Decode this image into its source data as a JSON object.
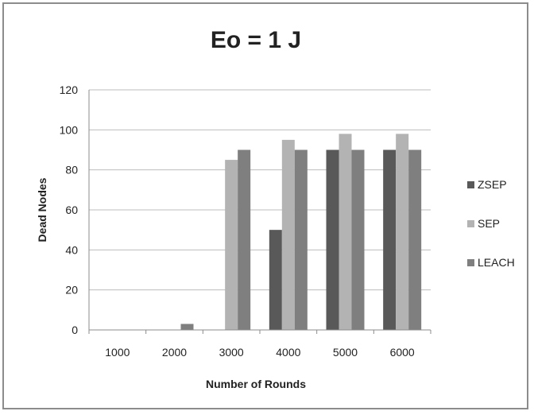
{
  "chart_data": {
    "type": "bar",
    "title": "Eo = 1 J",
    "xlabel": "Number of Rounds",
    "ylabel": "Dead Nodes",
    "categories": [
      "1000",
      "2000",
      "3000",
      "4000",
      "5000",
      "6000"
    ],
    "ylim": [
      0,
      120
    ],
    "yticks": [
      0,
      20,
      40,
      60,
      80,
      100,
      120
    ],
    "grid": true,
    "legend_position": "right",
    "series": [
      {
        "name": "ZSEP",
        "color": "#595959",
        "values": [
          0,
          0,
          0,
          50,
          90,
          90
        ]
      },
      {
        "name": "SEP",
        "color": "#b3b3b3",
        "values": [
          0,
          0,
          85,
          95,
          98,
          98
        ]
      },
      {
        "name": "LEACH",
        "color": "#7f7f7f",
        "values": [
          0,
          3,
          90,
          90,
          90,
          90
        ]
      }
    ]
  }
}
